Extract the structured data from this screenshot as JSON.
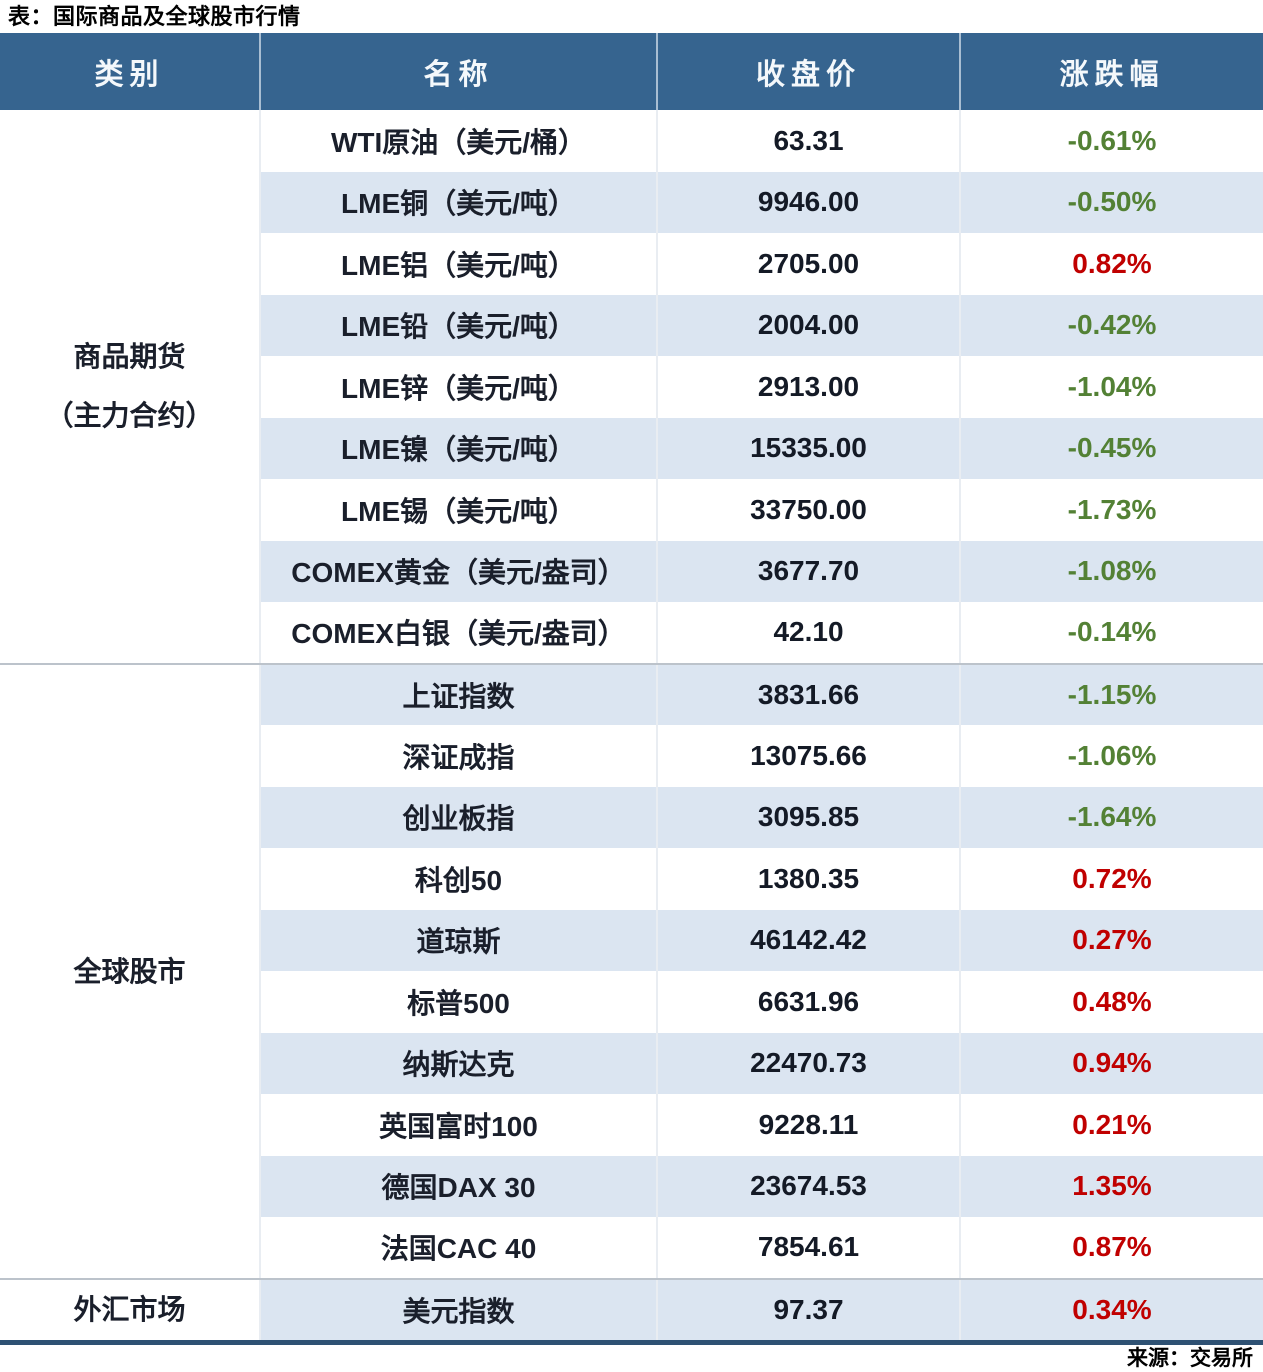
{
  "chart_data": {
    "type": "table",
    "title": "表：国际商品及全球股市行情",
    "source": "来源：交易所",
    "columns": [
      "类别",
      "名称",
      "收盘价",
      "涨跌幅"
    ],
    "legend_note": "green = decline, red = gain",
    "colors": {
      "header_bg": "#36648F",
      "header_text": "#F4F8FB",
      "row_alt_bg": "#DBE5F1",
      "row_bg": "#FFFFFF",
      "gain_red": "#C00000",
      "decline_green": "#538135",
      "bottom_border": "#2E5173",
      "group_divider": "#BCC3CB"
    },
    "groups": [
      {
        "category": "商品期货（主力合约）",
        "category_lines": [
          "商品期货",
          "（主力合约）"
        ],
        "rows": [
          {
            "name": "WTI原油（美元/桶）",
            "close": "63.31",
            "change": "-0.61%",
            "direction": "down"
          },
          {
            "name": "LME铜（美元/吨）",
            "close": "9946.00",
            "change": "-0.50%",
            "direction": "down"
          },
          {
            "name": "LME铝（美元/吨）",
            "close": "2705.00",
            "change": "0.82%",
            "direction": "up"
          },
          {
            "name": "LME铅（美元/吨）",
            "close": "2004.00",
            "change": "-0.42%",
            "direction": "down"
          },
          {
            "name": "LME锌（美元/吨）",
            "close": "2913.00",
            "change": "-1.04%",
            "direction": "down"
          },
          {
            "name": "LME镍（美元/吨）",
            "close": "15335.00",
            "change": "-0.45%",
            "direction": "down"
          },
          {
            "name": "LME锡（美元/吨）",
            "close": "33750.00",
            "change": "-1.73%",
            "direction": "down"
          },
          {
            "name": "COMEX黄金（美元/盎司）",
            "close": "3677.70",
            "change": "-1.08%",
            "direction": "down"
          },
          {
            "name": "COMEX白银（美元/盎司）",
            "close": "42.10",
            "change": "-0.14%",
            "direction": "down"
          }
        ]
      },
      {
        "category": "全球股市",
        "category_lines": [
          "全球股市"
        ],
        "rows": [
          {
            "name": "上证指数",
            "close": "3831.66",
            "change": "-1.15%",
            "direction": "down"
          },
          {
            "name": "深证成指",
            "close": "13075.66",
            "change": "-1.06%",
            "direction": "down"
          },
          {
            "name": "创业板指",
            "close": "3095.85",
            "change": "-1.64%",
            "direction": "down"
          },
          {
            "name": "科创50",
            "close": "1380.35",
            "change": "0.72%",
            "direction": "up"
          },
          {
            "name": "道琼斯",
            "close": "46142.42",
            "change": "0.27%",
            "direction": "up"
          },
          {
            "name": "标普500",
            "close": "6631.96",
            "change": "0.48%",
            "direction": "up"
          },
          {
            "name": "纳斯达克",
            "close": "22470.73",
            "change": "0.94%",
            "direction": "up"
          },
          {
            "name": "英国富时100",
            "close": "9228.11",
            "change": "0.21%",
            "direction": "up"
          },
          {
            "name": "德国DAX 30",
            "close": "23674.53",
            "change": "1.35%",
            "direction": "up"
          },
          {
            "name": "法国CAC 40",
            "close": "7854.61",
            "change": "0.87%",
            "direction": "up"
          }
        ]
      },
      {
        "category": "外汇市场",
        "category_lines": [
          "外汇市场"
        ],
        "rows": [
          {
            "name": "美元指数",
            "close": "97.37",
            "change": "0.34%",
            "direction": "up"
          }
        ]
      }
    ]
  }
}
